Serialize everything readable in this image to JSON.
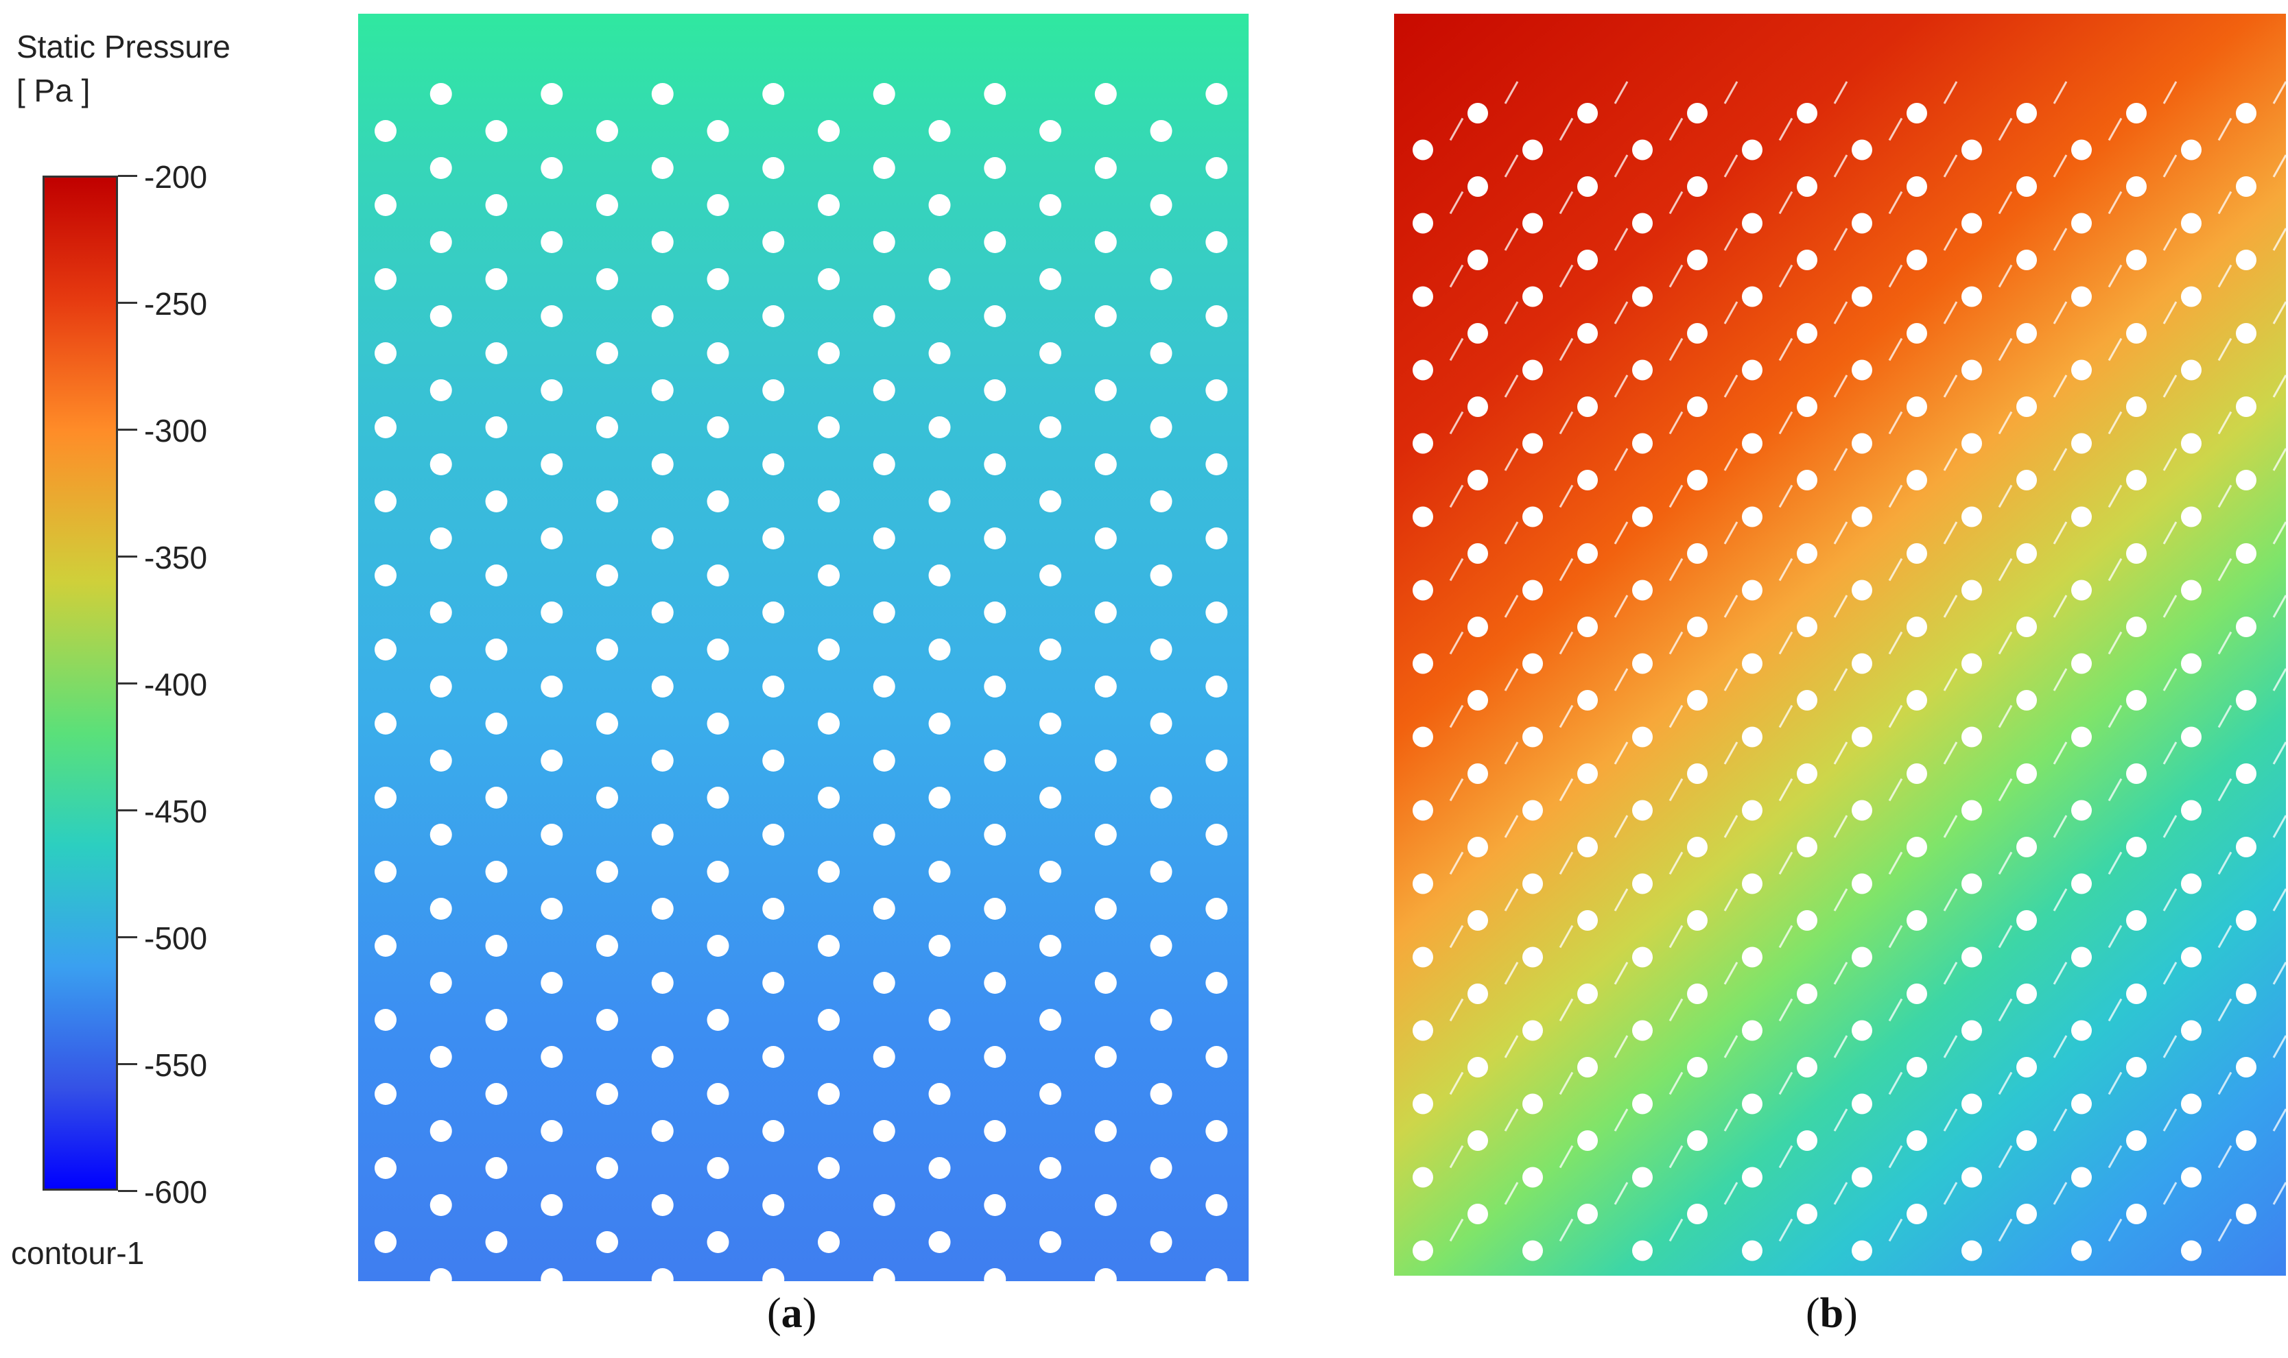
{
  "legend": {
    "title_line1": "Static Pressure",
    "title_line2": "[ Pa ]",
    "ticks": [
      "-200",
      "-250",
      "-300",
      "-350",
      "-400",
      "-450",
      "-500",
      "-550",
      "-600"
    ],
    "name": "contour-1",
    "colors": [
      "#c00000",
      "#e63a10",
      "#ff8c28",
      "#cfd03a",
      "#5ae07a",
      "#2ccfc0",
      "#3aa0f0",
      "#3552e6",
      "#0000ff"
    ]
  },
  "panels": [
    {
      "caption_open": "(",
      "caption_letter": "a",
      "caption_close": ")"
    },
    {
      "caption_open": "(",
      "caption_letter": "b",
      "caption_close": ")"
    }
  ]
}
